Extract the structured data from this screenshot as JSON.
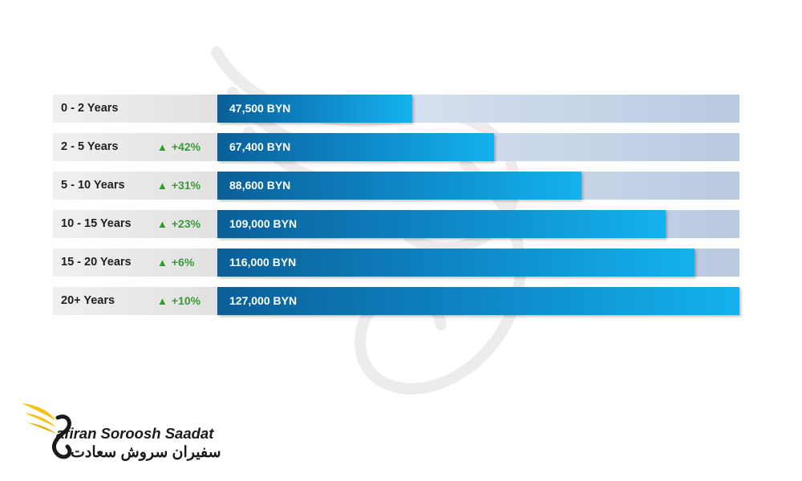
{
  "chart_data": {
    "type": "bar",
    "orientation": "horizontal",
    "categories": [
      "0 - 2 Years",
      "2 - 5 Years",
      "5 - 10 Years",
      "10 - 15 Years",
      "15 - 20 Years",
      "20+ Years"
    ],
    "values": [
      47500,
      67400,
      88600,
      109000,
      116000,
      127000
    ],
    "value_labels": [
      "47,500 BYN",
      "67,400 BYN",
      "88,600 BYN",
      "109,000 BYN",
      "116,000 BYN",
      "127,000 BYN"
    ],
    "growth_labels": [
      "",
      "+42%",
      "+31%",
      "+23%",
      "+6%",
      "+10%"
    ],
    "xlim": [
      0,
      127000
    ],
    "unit": "BYN",
    "colors": {
      "bar": "#0e86c6",
      "track": "#c8d6ea",
      "growth": "#2e9d2e"
    }
  },
  "branding": {
    "name": "afiran Soroosh Saadat",
    "name_fa": "سفیران سروش سعادت",
    "logo_icon": "swan-wing-logo"
  }
}
